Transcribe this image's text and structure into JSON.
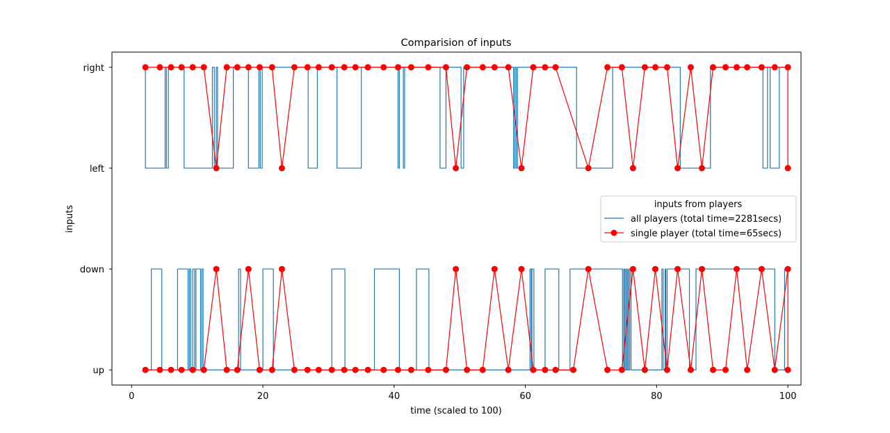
{
  "chart_data": {
    "type": "line",
    "title": "Comparision of inputs",
    "xlabel": "time (scaled to 100)",
    "ylabel": "inputs",
    "xlim": [
      -3,
      102
    ],
    "xticks": [
      0,
      20,
      40,
      60,
      80,
      100
    ],
    "xtick_labels": [
      "0",
      "20",
      "40",
      "60",
      "80",
      "100"
    ],
    "y_categories": [
      "up",
      "down",
      "left",
      "right"
    ],
    "ylim": [
      -0.15,
      3.15
    ],
    "grid": false,
    "legend": {
      "title": "inputs from players",
      "placement": "center-right",
      "entries": [
        "all players (total time=2281secs)",
        "single player (total time=65secs)"
      ]
    },
    "series": [
      {
        "name": "all players (total time=2281secs)",
        "color": "#1f77b4",
        "style": "step",
        "marker": "none",
        "tracks": [
          {
            "base": "left",
            "high": "right",
            "start_state": "high",
            "x_start": 2.0,
            "toggles": [
              2.1,
              5.1,
              5.3,
              5.6,
              8.0,
              12.3,
              12.6,
              12.9,
              13.1,
              15.5,
              17.8,
              19.4,
              19.6,
              19.9,
              26.9,
              28.3,
              31.3,
              35.0,
              40.6,
              40.8,
              41.4,
              41.6,
              47.0,
              47.9,
              50.2,
              50.6,
              58.2,
              58.4,
              58.6,
              58.8,
              67.8,
              73.3,
              83.6,
              88.2,
              96.2,
              96.9,
              97.3,
              98.7
            ],
            "x_end": 100
          },
          {
            "base": "up",
            "high": "down",
            "start_state": "low",
            "x_start": 2.0,
            "toggles": [
              3.0,
              4.6,
              7.0,
              8.6,
              8.8,
              9.0,
              9.3,
              9.6,
              9.8,
              10.5,
              10.7,
              10.9,
              16.3,
              16.6,
              20.0,
              21.6,
              30.5,
              32.5,
              37.0,
              40.8,
              43.4,
              45.3,
              60.7,
              60.9,
              61.0,
              61.3,
              63.0,
              65.1,
              66.8,
              74.8,
              75.0,
              75.1,
              75.3,
              75.4,
              75.6,
              75.7,
              75.9,
              76.1,
              80.8,
              81.0,
              81.3,
              81.4,
              81.6,
              85.0,
              86.0,
              98.0,
              99.5
            ],
            "x_end": 100
          }
        ]
      },
      {
        "name": "single player (total time=65secs)",
        "color": "#ff0000",
        "style": "line",
        "marker": "circle",
        "tracks": [
          {
            "points": [
              [
                2.1,
                "right"
              ],
              [
                4.3,
                "right"
              ],
              [
                6.0,
                "right"
              ],
              [
                7.6,
                "right"
              ],
              [
                9.3,
                "right"
              ],
              [
                11.0,
                "right"
              ],
              [
                12.9,
                "left"
              ],
              [
                14.5,
                "right"
              ],
              [
                16.1,
                "right"
              ],
              [
                17.8,
                "right"
              ],
              [
                19.5,
                "right"
              ],
              [
                21.4,
                "right"
              ],
              [
                22.9,
                "left"
              ],
              [
                24.8,
                "right"
              ],
              [
                26.8,
                "right"
              ],
              [
                28.5,
                "right"
              ],
              [
                30.5,
                "right"
              ],
              [
                32.4,
                "right"
              ],
              [
                34.1,
                "right"
              ],
              [
                36.0,
                "right"
              ],
              [
                38.4,
                "right"
              ],
              [
                40.6,
                "right"
              ],
              [
                42.6,
                "right"
              ],
              [
                45.2,
                "right"
              ],
              [
                47.9,
                "right"
              ],
              [
                49.4,
                "left"
              ],
              [
                51.1,
                "right"
              ],
              [
                53.5,
                "right"
              ],
              [
                55.3,
                "right"
              ],
              [
                57.4,
                "right"
              ],
              [
                59.4,
                "left"
              ],
              [
                61.2,
                "right"
              ],
              [
                63.0,
                "right"
              ],
              [
                64.6,
                "right"
              ],
              [
                69.6,
                "left"
              ],
              [
                72.5,
                "right"
              ],
              [
                74.7,
                "right"
              ],
              [
                76.4,
                "left"
              ],
              [
                78.2,
                "right"
              ],
              [
                79.8,
                "right"
              ],
              [
                81.6,
                "right"
              ],
              [
                83.2,
                "left"
              ],
              [
                85.2,
                "right"
              ],
              [
                86.9,
                "left"
              ],
              [
                88.6,
                "right"
              ],
              [
                90.5,
                "right"
              ],
              [
                92.2,
                "right"
              ],
              [
                93.8,
                "right"
              ],
              [
                96.0,
                "right"
              ],
              [
                98.0,
                "right"
              ],
              [
                100.0,
                "right"
              ],
              [
                100.0,
                "left"
              ]
            ]
          },
          {
            "points": [
              [
                2.1,
                "up"
              ],
              [
                4.3,
                "up"
              ],
              [
                6.0,
                "up"
              ],
              [
                7.6,
                "up"
              ],
              [
                9.3,
                "up"
              ],
              [
                11.0,
                "up"
              ],
              [
                12.9,
                "down"
              ],
              [
                14.5,
                "up"
              ],
              [
                16.1,
                "up"
              ],
              [
                17.8,
                "down"
              ],
              [
                19.5,
                "up"
              ],
              [
                21.4,
                "up"
              ],
              [
                22.9,
                "down"
              ],
              [
                24.8,
                "up"
              ],
              [
                26.8,
                "up"
              ],
              [
                28.5,
                "up"
              ],
              [
                30.5,
                "up"
              ],
              [
                32.4,
                "up"
              ],
              [
                34.1,
                "up"
              ],
              [
                36.0,
                "up"
              ],
              [
                38.4,
                "up"
              ],
              [
                40.6,
                "up"
              ],
              [
                42.6,
                "up"
              ],
              [
                45.2,
                "up"
              ],
              [
                47.9,
                "up"
              ],
              [
                49.4,
                "down"
              ],
              [
                51.1,
                "up"
              ],
              [
                53.5,
                "up"
              ],
              [
                55.3,
                "down"
              ],
              [
                57.4,
                "up"
              ],
              [
                59.4,
                "down"
              ],
              [
                61.2,
                "up"
              ],
              [
                63.0,
                "up"
              ],
              [
                64.6,
                "up"
              ],
              [
                67.3,
                "up"
              ],
              [
                69.6,
                "down"
              ],
              [
                72.5,
                "up"
              ],
              [
                74.7,
                "up"
              ],
              [
                76.4,
                "down"
              ],
              [
                78.2,
                "up"
              ],
              [
                79.8,
                "down"
              ],
              [
                81.6,
                "up"
              ],
              [
                83.2,
                "down"
              ],
              [
                85.2,
                "up"
              ],
              [
                86.9,
                "down"
              ],
              [
                88.6,
                "up"
              ],
              [
                90.5,
                "up"
              ],
              [
                92.2,
                "down"
              ],
              [
                93.8,
                "up"
              ],
              [
                96.0,
                "down"
              ],
              [
                98.0,
                "up"
              ],
              [
                100.0,
                "down"
              ],
              [
                100.0,
                "up"
              ]
            ]
          }
        ]
      }
    ]
  }
}
